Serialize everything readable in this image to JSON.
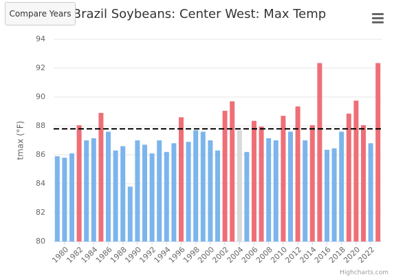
{
  "chart_data": {
    "type": "bar",
    "title": "Brazil Soybeans: Center West: Max Temp",
    "button": "Compare Years",
    "credits": "Highcharts.com",
    "y_axis_label": "tmax (°F)",
    "x": [
      1979,
      1980,
      1981,
      1982,
      1983,
      1984,
      1985,
      1986,
      1987,
      1988,
      1989,
      1990,
      1991,
      1992,
      1993,
      1994,
      1995,
      1996,
      1997,
      1998,
      1999,
      2000,
      2001,
      2002,
      2003,
      2004,
      2005,
      2006,
      2007,
      2008,
      2009,
      2010,
      2011,
      2012,
      2013,
      2014,
      2015,
      2016,
      2017,
      2018,
      2019,
      2020,
      2021,
      2022,
      2023
    ],
    "values": [
      85.9,
      85.8,
      86.1,
      88.05,
      87.0,
      87.15,
      88.9,
      87.6,
      86.3,
      86.6,
      83.8,
      87.0,
      86.7,
      86.1,
      87.0,
      86.2,
      86.8,
      88.6,
      86.9,
      87.7,
      87.6,
      87.0,
      86.3,
      89.05,
      89.7,
      87.7,
      86.2,
      88.35,
      87.95,
      87.15,
      87.0,
      88.7,
      87.6,
      89.35,
      87.0,
      88.05,
      92.35,
      86.35,
      86.45,
      87.6,
      88.85,
      89.75,
      88.05,
      86.8,
      92.35
    ],
    "colors": [
      "#7cb5ec",
      "#7cb5ec",
      "#7cb5ec",
      "#ef6f77",
      "#7cb5ec",
      "#7cb5ec",
      "#ef6f77",
      "#7cb5ec",
      "#7cb5ec",
      "#7cb5ec",
      "#7cb5ec",
      "#7cb5ec",
      "#7cb5ec",
      "#7cb5ec",
      "#7cb5ec",
      "#7cb5ec",
      "#7cb5ec",
      "#ef6f77",
      "#7cb5ec",
      "#7cb5ec",
      "#7cb5ec",
      "#7cb5ec",
      "#7cb5ec",
      "#ef6f77",
      "#ef6f77",
      "#d9d9d9",
      "#7cb5ec",
      "#ef6f77",
      "#ef6f77",
      "#7cb5ec",
      "#7cb5ec",
      "#ef6f77",
      "#7cb5ec",
      "#ef6f77",
      "#7cb5ec",
      "#ef6f77",
      "#ef6f77",
      "#7cb5ec",
      "#7cb5ec",
      "#7cb5ec",
      "#ef6f77",
      "#ef6f77",
      "#ef6f77",
      "#7cb5ec",
      "#ef6f77"
    ],
    "reference_line": 87.8,
    "xlim": [
      1978.5,
      2023.5
    ],
    "xticks": [
      1980,
      1982,
      1984,
      1986,
      1988,
      1990,
      1992,
      1994,
      1996,
      1998,
      2000,
      2002,
      2004,
      2006,
      2008,
      2010,
      2012,
      2014,
      2016,
      2018,
      2020,
      2022
    ],
    "ylim": [
      80,
      94
    ],
    "yticks": [
      80,
      82,
      84,
      86,
      88,
      90,
      92,
      94
    ],
    "grid": true
  }
}
